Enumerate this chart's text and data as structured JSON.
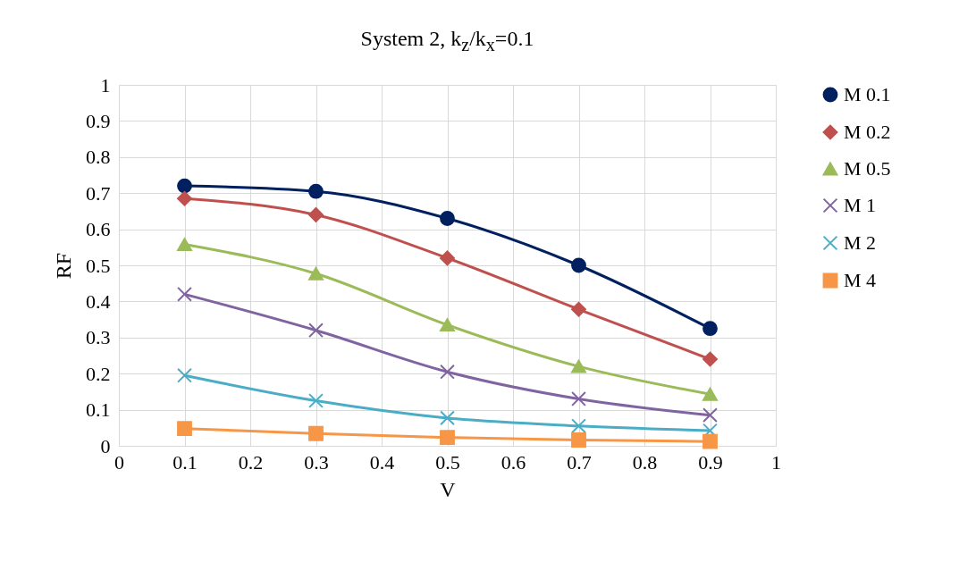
{
  "chart_data": {
    "type": "line",
    "title": "System 2, k$_{z}$/k$_{x}$=0.1",
    "xlabel": "V",
    "ylabel": "RF",
    "x": [
      0.1,
      0.3,
      0.5,
      0.7,
      0.9
    ],
    "xlim": [
      0,
      1
    ],
    "xticks": [
      0,
      0.1,
      0.2,
      0.3,
      0.4,
      0.5,
      0.6,
      0.7,
      0.8,
      0.9,
      1
    ],
    "ylim": [
      0,
      1
    ],
    "yticks": [
      0,
      0.1,
      0.2,
      0.3,
      0.4,
      0.5,
      0.6,
      0.7,
      0.8,
      0.9,
      1
    ],
    "grid": true,
    "legend": "right",
    "series": [
      {
        "name": "M 0.1",
        "color": "#002060",
        "marker": "circle",
        "values": [
          0.72,
          0.705,
          0.63,
          0.5,
          0.325
        ]
      },
      {
        "name": "M 0.2",
        "color": "#c0504d",
        "marker": "diamond",
        "values": [
          0.685,
          0.64,
          0.52,
          0.378,
          0.24
        ]
      },
      {
        "name": "M 0.5",
        "color": "#9bbb59",
        "marker": "triangle",
        "values": [
          0.558,
          0.477,
          0.335,
          0.22,
          0.143
        ]
      },
      {
        "name": "M 1",
        "color": "#8064a2",
        "marker": "cross",
        "values": [
          0.42,
          0.32,
          0.205,
          0.13,
          0.085
        ]
      },
      {
        "name": "M 2",
        "color": "#4bacc6",
        "marker": "cross",
        "values": [
          0.195,
          0.125,
          0.077,
          0.055,
          0.042
        ]
      },
      {
        "name": "M 4",
        "color": "#f79646",
        "marker": "square",
        "values": [
          0.048,
          0.034,
          0.023,
          0.016,
          0.012
        ]
      }
    ]
  }
}
